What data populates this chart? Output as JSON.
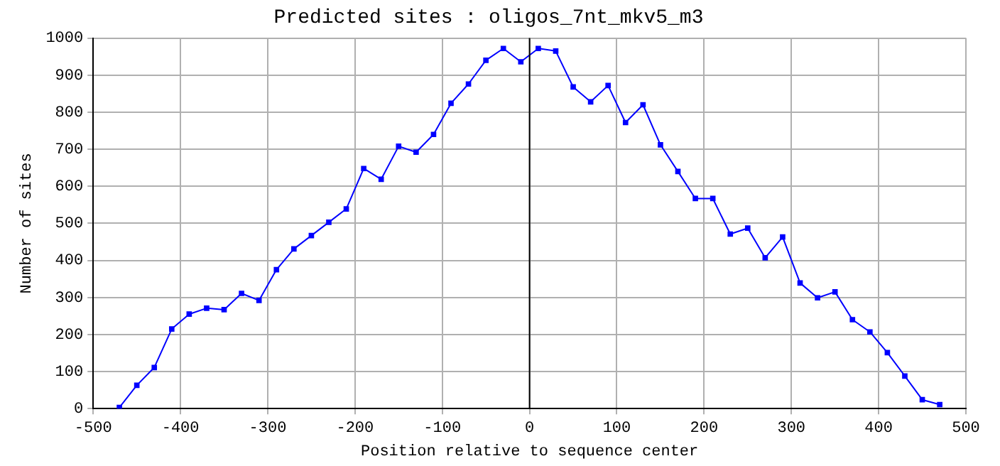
{
  "chart_data": {
    "type": "line",
    "title": "Predicted sites : oligos_7nt_mkv5_m3",
    "xlabel": "Position relative to sequence center",
    "ylabel": "Number of sites",
    "x": [
      -470,
      -450,
      -430,
      -410,
      -390,
      -370,
      -350,
      -330,
      -310,
      -290,
      -270,
      -250,
      -230,
      -210,
      -190,
      -170,
      -150,
      -130,
      -110,
      -90,
      -70,
      -50,
      -30,
      -10,
      10,
      30,
      50,
      70,
      90,
      110,
      130,
      150,
      170,
      190,
      210,
      230,
      250,
      270,
      290,
      310,
      330,
      350,
      370,
      390,
      410,
      430,
      450,
      470
    ],
    "series": [
      {
        "color": "#0000ff",
        "values": [
          3,
          63,
          111,
          215,
          255,
          271,
          267,
          311,
          292,
          375,
          431,
          467,
          503,
          539,
          648,
          619,
          708,
          692,
          740,
          824,
          876,
          940,
          972,
          936,
          972,
          965,
          868,
          828,
          872,
          772,
          820,
          712,
          640,
          567,
          567,
          471,
          487,
          407,
          463,
          339,
          299,
          315,
          240,
          207,
          151,
          88,
          24,
          11
        ]
      }
    ],
    "xlim": [
      -500,
      500
    ],
    "xticks": [
      -500,
      -400,
      -300,
      -200,
      -100,
      0,
      100,
      200,
      300,
      400,
      500
    ],
    "ylim": [
      0,
      1000
    ],
    "yticks": [
      0,
      100,
      200,
      300,
      400,
      500,
      600,
      700,
      800,
      900,
      1000
    ],
    "ref_lines": [
      {
        "axis": "x",
        "value": 0,
        "color": "#000000"
      }
    ],
    "grid": true,
    "legend": false,
    "marker": "square",
    "line_style": "solid"
  }
}
